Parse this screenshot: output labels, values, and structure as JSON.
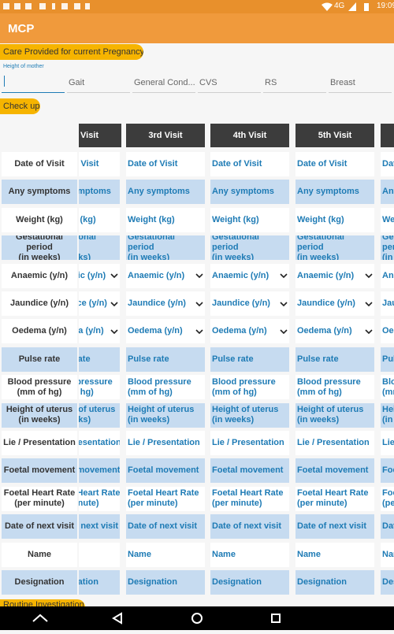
{
  "status_bar": {
    "network": "4G",
    "time": "19:09"
  },
  "app_bar": {
    "title": "MCP"
  },
  "care_section": {
    "title": "Care Provided for current Pregnancy",
    "height_label": "Height of mother",
    "fields": [
      "Gait",
      "General Cond...",
      "CVS",
      "RS",
      "Breast"
    ]
  },
  "checkup": {
    "title": "Check up",
    "headers": [
      "Visit",
      "3rd Visit",
      "4th Visit",
      "5th Visit"
    ],
    "rows": [
      "Date of Visit",
      "Any symptoms",
      "Weight (kg)",
      "Gestational period\n(in weeks)",
      "Anaemic (y/n)",
      "Jaundice (y/n)",
      "Oedema (y/n)",
      "Pulse rate",
      "Blood pressure\n(mm of hg)",
      "Height of uterus\n(in weeks)",
      "Lie / Presentation",
      "Foetal movement",
      "Foetal Heart Rate\n(per minute)",
      "Date of next visit",
      "Name",
      "Designation"
    ]
  },
  "next_section": {
    "title": "Routine Investigation"
  }
}
